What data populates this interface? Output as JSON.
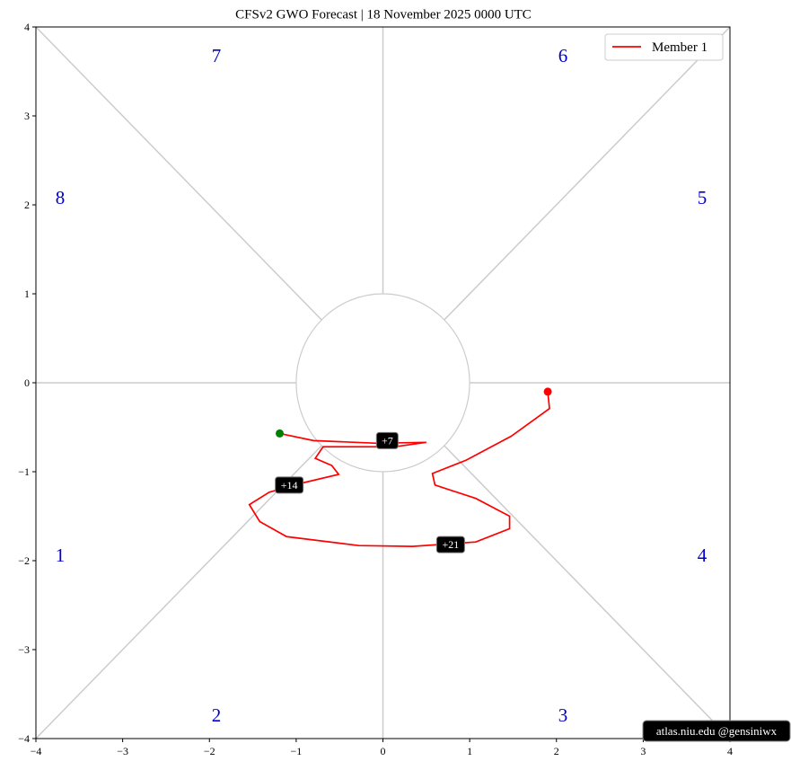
{
  "chart_data": {
    "type": "line",
    "title": "CFSv2 GWO Forecast   |   18  November  2025 0000 UTC",
    "xlim": [
      -4,
      4
    ],
    "ylim": [
      -4,
      4
    ],
    "xticks": [
      {
        "value": -4,
        "label": "−4"
      },
      {
        "value": -3,
        "label": "−3"
      },
      {
        "value": -2,
        "label": "−2"
      },
      {
        "value": -1,
        "label": "−1"
      },
      0,
      1,
      2,
      3,
      4
    ],
    "yticks": [
      {
        "value": -4,
        "label": "−4"
      },
      {
        "value": -3,
        "label": "−3"
      },
      {
        "value": -2,
        "label": "−2"
      },
      {
        "value": -1,
        "label": "−1"
      },
      0,
      1,
      2,
      3,
      4
    ],
    "phase_labels": [
      "1",
      "2",
      "3",
      "4",
      "5",
      "6",
      "7",
      "8"
    ],
    "series": [
      {
        "name": "Member 1",
        "color": "#ff0000",
        "start_color": "#008000",
        "x": [
          -1.19,
          -0.8,
          -0.07,
          0.5,
          0.13,
          -0.69,
          -0.78,
          -0.59,
          -0.51,
          -0.9,
          -1.31,
          -1.54,
          -1.42,
          -1.11,
          -0.28,
          0.34,
          1.07,
          1.46,
          1.46,
          1.07,
          0.6,
          0.57,
          0.96,
          1.48,
          1.92,
          1.9
        ],
        "values": [
          -0.57,
          -0.65,
          -0.68,
          -0.67,
          -0.72,
          -0.72,
          -0.85,
          -0.93,
          -1.03,
          -1.12,
          -1.23,
          -1.37,
          -1.56,
          -1.73,
          -1.83,
          -1.84,
          -1.79,
          -1.64,
          -1.5,
          -1.3,
          -1.15,
          -1.02,
          -0.87,
          -0.6,
          -0.29,
          -0.1
        ]
      }
    ],
    "annotations": [
      {
        "text": "+7",
        "x": 0.05,
        "y": -0.65
      },
      {
        "text": "+14",
        "x": -1.08,
        "y": -1.15
      },
      {
        "text": "+21",
        "x": 0.78,
        "y": -1.82
      }
    ],
    "legend": "upper right",
    "credit": "atlas.niu.edu  @gensiniwx"
  }
}
